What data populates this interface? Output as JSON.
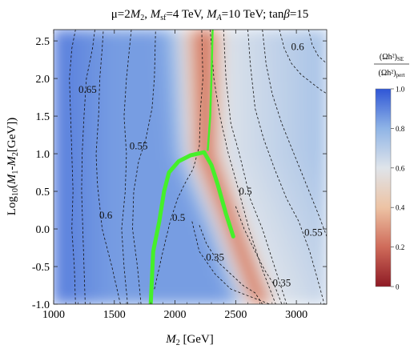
{
  "chart_data": {
    "type": "heatmap",
    "title": "μ=2M₂, M_sf=4 TeV, M_A=10 TeV; tanβ=15",
    "title_parts": {
      "p1": "μ=2",
      "p1_var": "M",
      "p1_sub": "2",
      "p2": ", ",
      "p2_var": "M",
      "p2_sub": "sf",
      "p2_rest": "=4 TeV, ",
      "p3_var": "M",
      "p3_sub": "A",
      "p3_rest": "=10 TeV; tan",
      "p3_greek": "β",
      "p3_end": "=15"
    },
    "xlabel": "M₂ [GeV]",
    "xlabel_parts": {
      "var": "M",
      "sub": "2",
      "rest": " [GeV]"
    },
    "ylabel": "Log₁₀(M₁-M₂[GeV])",
    "ylabel_parts": {
      "pre": "Log",
      "sub1": "10",
      "mid": "(",
      "v1": "M",
      "s1": "1",
      "dash": "-",
      "v2": "M",
      "s2": "2",
      "end": "[GeV])"
    },
    "xlim": [
      1000,
      3250
    ],
    "ylim": [
      -1.0,
      2.65
    ],
    "x_ticks": [
      1000,
      1500,
      2000,
      2500,
      3000
    ],
    "x_tick_labels": [
      "1000",
      "1500",
      "2000",
      "2500",
      "3000"
    ],
    "y_ticks": [
      -1.0,
      -0.5,
      0.0,
      0.5,
      1.0,
      1.5,
      2.0,
      2.5
    ],
    "y_tick_labels": [
      "-1.0",
      "-0.5",
      "0.0",
      "0.5",
      "1.0",
      "1.5",
      "2.0",
      "2.5"
    ],
    "colorbar": {
      "label_num": "(Ωh²)",
      "label_num_sub": "SE",
      "label_den": "(Ωh²)",
      "label_den_sub": "pert",
      "range": [
        0.0,
        1.0
      ],
      "ticks": [
        0.0,
        0.2,
        0.4,
        0.6,
        0.8,
        1.0
      ],
      "tick_labels": [
        "0",
        "0.2",
        "0.4",
        "0.6",
        "0.8",
        "1.0"
      ],
      "colors": [
        "#8e1a24",
        "#cf6b5a",
        "#edc3a4",
        "#dfe4ea",
        "#8fb4e6",
        "#2f56d6"
      ]
    },
    "contours": [
      {
        "level": 0.65,
        "label": "0.65",
        "label_at": [
          1280,
          1.85
        ],
        "points": [
          [
            1180,
            -1.0
          ],
          [
            1170,
            -0.5
          ],
          [
            1150,
            0.0
          ],
          [
            1160,
            0.5
          ],
          [
            1150,
            1.0
          ],
          [
            1140,
            1.5
          ],
          [
            1130,
            2.0
          ],
          [
            1150,
            2.4
          ],
          [
            1180,
            2.65
          ]
        ]
      },
      {
        "level": 0.65,
        "label": "",
        "points": [
          [
            1260,
            -1.0
          ],
          [
            1250,
            -0.5
          ],
          [
            1240,
            0.0
          ],
          [
            1230,
            0.5
          ],
          [
            1235,
            1.0
          ],
          [
            1250,
            1.5
          ],
          [
            1270,
            2.0
          ],
          [
            1320,
            2.4
          ],
          [
            1340,
            2.65
          ]
        ]
      },
      {
        "level": 0.6,
        "label": "0.6",
        "label_at": [
          1430,
          0.18
        ],
        "points": [
          [
            1550,
            -1.0
          ],
          [
            1480,
            -0.5
          ],
          [
            1400,
            0.0
          ],
          [
            1380,
            0.3
          ],
          [
            1360,
            0.6
          ],
          [
            1350,
            1.0
          ],
          [
            1370,
            1.5
          ],
          [
            1380,
            2.0
          ],
          [
            1400,
            2.4
          ],
          [
            1410,
            2.65
          ]
        ]
      },
      {
        "level": 0.6,
        "label": "",
        "points": [
          [
            1610,
            -1.0
          ],
          [
            1580,
            -0.5
          ],
          [
            1560,
            0.0
          ],
          [
            1590,
            0.5
          ],
          [
            1600,
            1.0
          ],
          [
            1580,
            1.5
          ],
          [
            1600,
            2.0
          ],
          [
            1640,
            2.65
          ]
        ]
      },
      {
        "level": 0.55,
        "label": "0.55",
        "label_at": [
          1700,
          1.1
        ],
        "points": [
          [
            1720,
            -1.0
          ],
          [
            1690,
            -0.5
          ],
          [
            1650,
            0.0
          ],
          [
            1660,
            0.5
          ],
          [
            1700,
            0.9
          ],
          [
            1760,
            1.2
          ],
          [
            1810,
            1.6
          ],
          [
            1830,
            2.0
          ],
          [
            1840,
            2.65
          ]
        ]
      },
      {
        "level": 0.5,
        "label": "0.5",
        "label_at": [
          2030,
          0.15
        ],
        "points": [
          [
            1830,
            -0.8
          ],
          [
            1900,
            -0.3
          ],
          [
            1960,
            0.1
          ],
          [
            2020,
            0.4
          ],
          [
            2080,
            0.6
          ],
          [
            2150,
            0.8
          ],
          [
            2200,
            1.1
          ],
          [
            2210,
            1.6
          ],
          [
            2230,
            2.0
          ],
          [
            2220,
            2.65
          ]
        ]
      },
      {
        "level": 0.5,
        "label": "0.5",
        "label_at": [
          2580,
          0.5
        ],
        "points": [
          [
            2290,
            2.65
          ],
          [
            2320,
            2.0
          ],
          [
            2370,
            1.5
          ],
          [
            2440,
            1.0
          ],
          [
            2510,
            0.6
          ],
          [
            2610,
            0.0
          ],
          [
            2710,
            -0.5
          ],
          [
            2830,
            -1.0
          ]
        ]
      },
      {
        "level": 0.45,
        "label": "",
        "points": [
          [
            2400,
            2.65
          ],
          [
            2420,
            2.0
          ],
          [
            2460,
            1.4
          ],
          [
            2530,
            1.0
          ],
          [
            2620,
            0.4
          ],
          [
            2720,
            0.0
          ],
          [
            2820,
            -0.5
          ],
          [
            2920,
            -1.0
          ]
        ]
      },
      {
        "level": 0.4,
        "label": "",
        "points": [
          [
            2140,
            0.1
          ],
          [
            2200,
            -0.3
          ],
          [
            2330,
            -0.6
          ],
          [
            2460,
            -0.8
          ],
          [
            2620,
            -0.9
          ],
          [
            2780,
            -1.0
          ]
        ]
      },
      {
        "level": 0.35,
        "label": "0.35",
        "label_at": [
          2330,
          -0.38
        ],
        "points": [
          [
            2200,
            0.05
          ],
          [
            2260,
            -0.2
          ],
          [
            2360,
            -0.45
          ],
          [
            2460,
            -0.6
          ],
          [
            2560,
            -0.75
          ],
          [
            2660,
            -0.85
          ],
          [
            2720,
            -1.0
          ]
        ]
      },
      {
        "level": 0.35,
        "label": "0.35",
        "label_at": [
          2880,
          -0.72
        ],
        "points": [
          [
            2500,
            0.3
          ],
          [
            2570,
            0.0
          ],
          [
            2660,
            -0.3
          ],
          [
            2740,
            -0.55
          ],
          [
            2820,
            -0.75
          ],
          [
            2880,
            -1.0
          ]
        ]
      },
      {
        "level": 0.55,
        "label": "0.55",
        "label_at": [
          3140,
          -0.05
        ],
        "points": [
          [
            2600,
            2.65
          ],
          [
            2620,
            2.2
          ],
          [
            2660,
            1.6
          ],
          [
            2730,
            1.2
          ],
          [
            2820,
            0.8
          ],
          [
            2920,
            0.4
          ],
          [
            3020,
            0.1
          ],
          [
            3110,
            -0.3
          ],
          [
            3180,
            -0.7
          ],
          [
            3230,
            -1.0
          ]
        ]
      },
      {
        "level": 0.55,
        "label": "",
        "points": [
          [
            2720,
            2.65
          ],
          [
            2750,
            2.2
          ],
          [
            2800,
            1.8
          ],
          [
            2880,
            1.4
          ],
          [
            2980,
            1.0
          ],
          [
            3080,
            0.6
          ],
          [
            3180,
            0.2
          ],
          [
            3250,
            -0.1
          ]
        ]
      },
      {
        "level": 0.6,
        "label": "0.6",
        "label_at": [
          3010,
          2.42
        ],
        "points": [
          [
            2860,
            2.65
          ],
          [
            2900,
            2.4
          ],
          [
            2960,
            2.2
          ],
          [
            3040,
            2.05
          ],
          [
            3120,
            1.95
          ],
          [
            3200,
            1.85
          ],
          [
            3250,
            1.8
          ]
        ]
      },
      {
        "level": 0.6,
        "label": "",
        "points": [
          [
            3100,
            2.65
          ],
          [
            3130,
            2.45
          ],
          [
            3180,
            2.3
          ],
          [
            3250,
            2.2
          ]
        ]
      }
    ],
    "green_band": {
      "color": "#45f02a",
      "points": [
        [
          1800,
          -1.0
        ],
        [
          1820,
          -0.3
        ],
        [
          1870,
          0.1
        ],
        [
          1910,
          0.5
        ],
        [
          1950,
          0.75
        ],
        [
          2030,
          0.9
        ],
        [
          2130,
          0.98
        ],
        [
          2240,
          1.02
        ],
        [
          2300,
          0.85
        ],
        [
          2350,
          0.6
        ],
        [
          2420,
          0.2
        ],
        [
          2480,
          -0.1
        ]
      ],
      "upper_points": [
        [
          2310,
          2.65
        ],
        [
          2300,
          2.0
        ],
        [
          2290,
          1.5
        ],
        [
          2270,
          1.05
        ]
      ]
    }
  }
}
